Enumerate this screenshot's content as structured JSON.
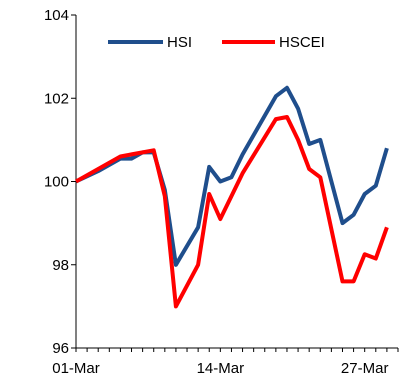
{
  "chart_data": {
    "type": "line",
    "title": "",
    "xlabel": "",
    "ylabel": "",
    "ylim": [
      96,
      104
    ],
    "yticks": [
      96,
      98,
      100,
      102,
      104
    ],
    "xlim": [
      1,
      30
    ],
    "x_tick_labels": [
      {
        "x": 1,
        "label": "01-Mar"
      },
      {
        "x": 14,
        "label": "14-Mar"
      },
      {
        "x": 27,
        "label": "27-Mar"
      }
    ],
    "grid": false,
    "legend": "top",
    "series": [
      {
        "name": "HSI",
        "color": "#1F4E8C",
        "points": [
          [
            1,
            100.0
          ],
          [
            3,
            100.25
          ],
          [
            5,
            100.55
          ],
          [
            6,
            100.55
          ],
          [
            7,
            100.7
          ],
          [
            8,
            100.7
          ],
          [
            9,
            99.8
          ],
          [
            10,
            98.0
          ],
          [
            12,
            98.9
          ],
          [
            13,
            100.35
          ],
          [
            14,
            100.0
          ],
          [
            15,
            100.1
          ],
          [
            16,
            100.65
          ],
          [
            19,
            102.05
          ],
          [
            20,
            102.25
          ],
          [
            21,
            101.75
          ],
          [
            22,
            100.9
          ],
          [
            23,
            101.0
          ],
          [
            25,
            99.0
          ],
          [
            26,
            99.2
          ],
          [
            27,
            99.7
          ],
          [
            28,
            99.9
          ],
          [
            29,
            100.8
          ]
        ]
      },
      {
        "name": "HSCEI",
        "color": "#FF0000",
        "points": [
          [
            1,
            100.0
          ],
          [
            3,
            100.3
          ],
          [
            5,
            100.6
          ],
          [
            6,
            100.65
          ],
          [
            7,
            100.7
          ],
          [
            8,
            100.75
          ],
          [
            9,
            99.65
          ],
          [
            10,
            97.0
          ],
          [
            12,
            98.0
          ],
          [
            13,
            99.7
          ],
          [
            14,
            99.1
          ],
          [
            16,
            100.2
          ],
          [
            19,
            101.5
          ],
          [
            20,
            101.55
          ],
          [
            21,
            101.0
          ],
          [
            22,
            100.3
          ],
          [
            23,
            100.1
          ],
          [
            25,
            97.6
          ],
          [
            26,
            97.6
          ],
          [
            27,
            98.25
          ],
          [
            28,
            98.15
          ],
          [
            29,
            98.9
          ]
        ]
      }
    ]
  }
}
